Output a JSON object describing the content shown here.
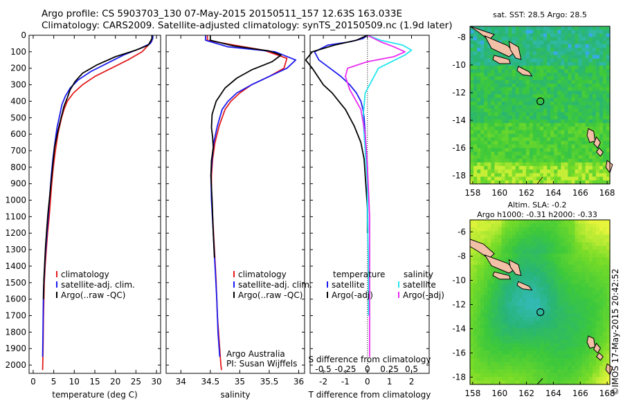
{
  "header": {
    "line1": "Argo profile: CS 5903703_130 07-May-2015 20150511_157 12.63S 163.033E",
    "line2": "Climatology: CARS2009. Satellite-adjusted climatology: synTS_20150509.nc (1.9d later)"
  },
  "stamp": "©IMOS 17-May-2015 20:42:52",
  "colors": {
    "climatology": "#e31a1c",
    "satellite": "#1a1aef",
    "argo": "#000000",
    "satellite_salinity": "#22e5ee",
    "argo_salinity": "#e92bf0",
    "land": "#f2c0a6"
  },
  "chart_data": [
    {
      "type": "line",
      "id": "temperature",
      "xlabel": "temperature (deg C)",
      "xlim": [
        -1,
        31
      ],
      "xticks": [
        0,
        5,
        10,
        15,
        20,
        25,
        30
      ],
      "ylim": [
        0,
        2050
      ],
      "yticks": [
        0,
        100,
        200,
        300,
        400,
        500,
        600,
        700,
        800,
        900,
        1000,
        1100,
        1200,
        1300,
        1400,
        1500,
        1600,
        1700,
        1800,
        1900,
        2000
      ],
      "legend": [
        "climatology",
        "satellite-adj. clim.",
        "Argo(..raw -QC)"
      ],
      "series": [
        {
          "name": "climatology",
          "color_key": "climatology",
          "x": [
            29.0,
            29.0,
            28.8,
            28.0,
            26.5,
            23.0,
            19.0,
            15.0,
            12.0,
            9.8,
            8.3,
            7.5,
            6.9,
            6.0,
            5.4,
            4.9,
            4.5,
            4.2,
            3.9,
            3.5,
            3.2,
            2.9,
            2.7,
            2.5,
            2.4,
            2.3
          ],
          "y": [
            0,
            20,
            40,
            60,
            100,
            150,
            200,
            250,
            300,
            350,
            400,
            450,
            500,
            600,
            700,
            800,
            900,
            1000,
            1100,
            1200,
            1300,
            1400,
            1500,
            1700,
            1900,
            2030
          ]
        },
        {
          "name": "satellite-adj. clim.",
          "color_key": "satellite",
          "x": [
            29.1,
            29.1,
            28.5,
            26.0,
            22.0,
            18.0,
            14.0,
            11.0,
            9.0,
            7.8,
            7.0,
            6.5,
            5.8,
            5.3,
            4.8,
            4.4,
            4.1,
            3.8,
            3.5,
            3.2,
            2.9,
            2.7,
            2.5,
            2.4,
            2.3
          ],
          "y": [
            0,
            20,
            50,
            80,
            120,
            170,
            220,
            270,
            320,
            370,
            420,
            480,
            560,
            650,
            750,
            850,
            950,
            1050,
            1150,
            1250,
            1350,
            1450,
            1550,
            1750,
            1950
          ]
        },
        {
          "name": "Argo(..raw -QC)",
          "color_key": "argo",
          "x": [
            28.9,
            28.9,
            28.0,
            25.0,
            20.0,
            15.5,
            12.0,
            10.2,
            9.0,
            8.3,
            7.5,
            6.8,
            6.0,
            5.2,
            4.8,
            4.4,
            4.0,
            3.6,
            3.3,
            3.0,
            2.8,
            2.6,
            2.5
          ],
          "y": [
            0,
            20,
            60,
            90,
            130,
            180,
            230,
            280,
            330,
            380,
            430,
            500,
            580,
            680,
            780,
            880,
            980,
            1080,
            1180,
            1280,
            1380,
            1480,
            1600
          ]
        }
      ]
    },
    {
      "type": "line",
      "id": "salinity",
      "xlabel": "salinity",
      "xlim": [
        33.75,
        36.1
      ],
      "xticks": [
        34,
        34.5,
        35,
        35.5,
        36
      ],
      "ylim": [
        0,
        2050
      ],
      "legend": [
        "climatology",
        "satellite-adj. clim.",
        "Argo(..raw -QC)"
      ],
      "annotation": [
        "Argo Australia",
        "PI: Susan Wijffels"
      ],
      "series": [
        {
          "name": "climatology",
          "color_key": "climatology",
          "x": [
            34.45,
            34.45,
            34.9,
            35.4,
            35.8,
            35.75,
            35.5,
            35.2,
            35.0,
            34.85,
            34.75,
            34.65,
            34.58,
            34.54,
            34.52,
            34.52,
            34.54,
            34.57,
            34.6,
            34.62,
            34.64,
            34.66,
            34.68,
            34.69
          ],
          "y": [
            0,
            30,
            60,
            90,
            140,
            200,
            250,
            300,
            350,
            400,
            450,
            550,
            650,
            750,
            850,
            950,
            1100,
            1300,
            1500,
            1700,
            1800,
            1900,
            2000,
            2030
          ]
        },
        {
          "name": "satellite-adj. clim.",
          "color_key": "satellite",
          "x": [
            34.42,
            34.42,
            34.8,
            35.6,
            35.95,
            35.8,
            35.5,
            35.2,
            34.95,
            34.8,
            34.7,
            34.62,
            34.56,
            34.53,
            34.51,
            34.52,
            34.55,
            34.58,
            34.61,
            34.63,
            34.65,
            34.66
          ],
          "y": [
            0,
            30,
            70,
            100,
            150,
            200,
            250,
            300,
            350,
            400,
            450,
            550,
            650,
            750,
            850,
            1000,
            1200,
            1400,
            1600,
            1800,
            1900,
            1950
          ]
        },
        {
          "name": "Argo(..raw -QC)",
          "color_key": "argo",
          "x": [
            34.5,
            34.5,
            34.9,
            35.5,
            35.7,
            35.55,
            35.2,
            34.95,
            34.75,
            34.6,
            34.53,
            34.52,
            34.54,
            34.55,
            34.52,
            34.51,
            34.53,
            34.55,
            34.57
          ],
          "y": [
            0,
            30,
            65,
            95,
            120,
            160,
            210,
            260,
            320,
            400,
            480,
            560,
            620,
            680,
            760,
            850,
            1000,
            1200,
            1350
          ]
        }
      ]
    },
    {
      "type": "line",
      "id": "difference",
      "xlabel": "T difference from climatology",
      "xlabel2": "S difference from climatology",
      "xlim": [
        -2.6,
        2.8
      ],
      "xticks": [
        -2,
        -1,
        0,
        1,
        2
      ],
      "top_ticks": [
        {
          "value": -2,
          "label": "-0.5"
        },
        {
          "value": -1,
          "label": "-0.25"
        },
        {
          "value": 0,
          "label": "0"
        },
        {
          "value": 1,
          "label": "0.25"
        },
        {
          "value": 2,
          "label": "0.5"
        }
      ],
      "ylim": [
        0,
        2050
      ],
      "legend_titles": [
        "temperature",
        "salinity"
      ],
      "legend_left": [
        "satellite",
        "Argo(-adj)"
      ],
      "legend_right": [
        "satellite",
        "Argo(-adj)"
      ],
      "series": [
        {
          "name": "temperature satellite",
          "color_key": "satellite",
          "x": [
            0.0,
            -0.2,
            -0.8,
            -1.8,
            -2.4,
            -2.2,
            -1.7,
            -1.2,
            -0.8,
            -0.5,
            -0.3,
            -0.2,
            -0.15,
            -0.1,
            -0.05,
            0.0,
            0.0,
            0.02
          ],
          "y": [
            0,
            20,
            40,
            60,
            100,
            150,
            200,
            250,
            300,
            350,
            400,
            450,
            500,
            600,
            700,
            800,
            1000,
            1200
          ]
        },
        {
          "name": "temperature Argo(-adj)",
          "color_key": "argo",
          "x": [
            0.0,
            -0.5,
            -1.5,
            -2.5,
            -2.8,
            -2.5,
            -2.0,
            -1.6,
            -1.3,
            -1.0,
            -0.6,
            -0.3,
            -0.15,
            -0.1,
            -0.05,
            0.0,
            0.0
          ],
          "y": [
            0,
            30,
            60,
            100,
            150,
            200,
            300,
            350,
            400,
            450,
            550,
            650,
            750,
            850,
            950,
            1050,
            1200
          ]
        },
        {
          "name": "salinity satellite",
          "color_key": "satellite_salinity",
          "x": [
            0.0,
            0.6,
            1.6,
            2.0,
            1.7,
            0.5,
            -0.1,
            -0.2,
            -0.1,
            0.0,
            0.0,
            0.05,
            0.05
          ],
          "y": [
            0,
            30,
            60,
            90,
            120,
            200,
            350,
            500,
            700,
            900,
            1100,
            1400,
            1700
          ]
        },
        {
          "name": "salinity Argo(-adj)",
          "color_key": "argo_salinity",
          "x": [
            0.0,
            0.6,
            1.2,
            1.7,
            1.2,
            0.0,
            -0.9,
            -1.0,
            -0.8,
            -0.3,
            -0.1,
            0.0,
            0.1,
            0.1,
            0.1
          ],
          "y": [
            0,
            40,
            70,
            100,
            130,
            160,
            200,
            250,
            330,
            450,
            600,
            800,
            1100,
            1600,
            1950
          ]
        }
      ]
    },
    {
      "type": "heatmap",
      "id": "sst-map",
      "title": "sat. SST: 28.5  Argo: 28.5",
      "xlim": [
        157.8,
        168.2
      ],
      "ylim": [
        -18.6,
        -7.2
      ],
      "xticks": [
        158,
        160,
        162,
        164,
        166,
        168
      ],
      "yticks": [
        -8,
        -10,
        -12,
        -14,
        -16,
        -18
      ],
      "marker": {
        "lon": 163.033,
        "lat": -12.63
      }
    },
    {
      "type": "heatmap",
      "id": "sla-map",
      "title": "Altim. SLA: -0.2",
      "subtitle": "Argo h1000: -0.31  h2000: -0.33",
      "xlim": [
        157.8,
        168.2
      ],
      "ylim": [
        -18.6,
        -5.0
      ],
      "xticks": [
        158,
        160,
        162,
        164,
        166,
        168
      ],
      "yticks": [
        -6,
        -8,
        -10,
        -12,
        -14,
        -16,
        -18
      ],
      "marker": {
        "lon": 163.033,
        "lat": -12.63
      }
    }
  ]
}
